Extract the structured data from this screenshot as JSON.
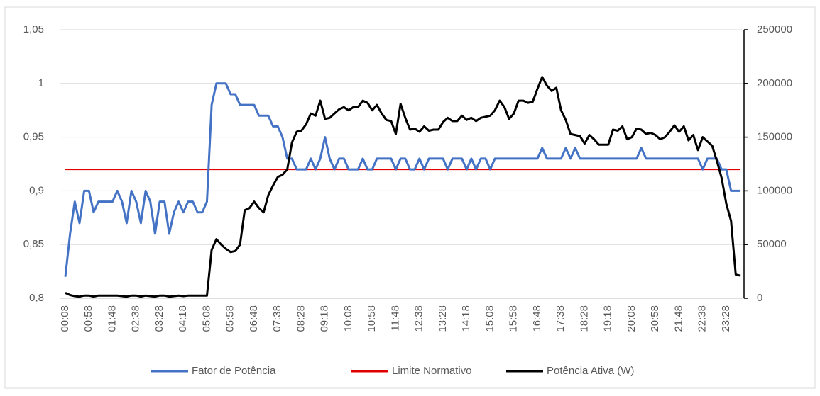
{
  "chart_data": {
    "type": "line",
    "categories": [
      "00:08",
      null,
      null,
      null,
      null,
      "00:58",
      null,
      null,
      null,
      null,
      "01:48",
      null,
      null,
      null,
      null,
      "02:38",
      null,
      null,
      null,
      null,
      "03:28",
      null,
      null,
      null,
      null,
      "04:18",
      null,
      null,
      null,
      null,
      "05:08",
      null,
      null,
      null,
      null,
      "05:58",
      null,
      null,
      null,
      null,
      "06:48",
      null,
      null,
      null,
      null,
      "07:38",
      null,
      null,
      null,
      null,
      "08:28",
      null,
      null,
      null,
      null,
      "09:18",
      null,
      null,
      null,
      null,
      "10:08",
      null,
      null,
      null,
      null,
      "10:58",
      null,
      null,
      null,
      null,
      "11:48",
      null,
      null,
      null,
      null,
      "12:38",
      null,
      null,
      null,
      null,
      "13:28",
      null,
      null,
      null,
      null,
      "14:18",
      null,
      null,
      null,
      null,
      "15:08",
      null,
      null,
      null,
      null,
      "15:58",
      null,
      null,
      null,
      null,
      "16:48",
      null,
      null,
      null,
      null,
      "17:38",
      null,
      null,
      null,
      null,
      "18:28",
      null,
      null,
      null,
      null,
      "19:18",
      null,
      null,
      null,
      null,
      "20:08",
      null,
      null,
      null,
      null,
      "20:58",
      null,
      null,
      null,
      null,
      "21:48",
      null,
      null,
      null,
      null,
      "22:38",
      null,
      null,
      null,
      null,
      "23:28",
      null,
      null,
      null
    ],
    "series": [
      {
        "name": "Fator de Potência",
        "color": "#4472c4",
        "values": [
          0.82,
          0.86,
          0.89,
          0.87,
          0.9,
          0.9,
          0.88,
          0.89,
          0.89,
          0.89,
          0.89,
          0.9,
          0.89,
          0.87,
          0.9,
          0.89,
          0.87,
          0.9,
          0.89,
          0.86,
          0.89,
          0.89,
          0.86,
          0.88,
          0.89,
          0.88,
          0.89,
          0.89,
          0.88,
          0.88,
          0.89,
          0.98,
          1.0,
          1.0,
          1.0,
          0.99,
          0.99,
          0.98,
          0.98,
          0.98,
          0.98,
          0.97,
          0.97,
          0.97,
          0.96,
          0.96,
          0.95,
          0.93,
          0.93,
          0.92,
          0.92,
          0.92,
          0.93,
          0.92,
          0.93,
          0.95,
          0.93,
          0.92,
          0.93,
          0.93,
          0.92,
          0.92,
          0.92,
          0.93,
          0.92,
          0.92,
          0.93,
          0.93,
          0.93,
          0.93,
          0.92,
          0.93,
          0.93,
          0.92,
          0.92,
          0.93,
          0.92,
          0.93,
          0.93,
          0.93,
          0.93,
          0.92,
          0.93,
          0.93,
          0.93,
          0.92,
          0.93,
          0.92,
          0.93,
          0.93,
          0.92,
          0.93,
          0.93,
          0.93,
          0.93,
          0.93,
          0.93,
          0.93,
          0.93,
          0.93,
          0.93,
          0.94,
          0.93,
          0.93,
          0.93,
          0.93,
          0.94,
          0.93,
          0.94,
          0.93,
          0.93,
          0.93,
          0.93,
          0.93,
          0.93,
          0.93,
          0.93,
          0.93,
          0.93,
          0.93,
          0.93,
          0.93,
          0.94,
          0.93,
          0.93,
          0.93,
          0.93,
          0.93,
          0.93,
          0.93,
          0.93,
          0.93,
          0.93,
          0.93,
          0.93,
          0.92,
          0.93,
          0.93,
          0.93,
          0.92,
          0.92,
          0.9,
          0.9,
          0.9
        ]
      },
      {
        "name": "Limite Normativo",
        "color": "#e00000",
        "values": [
          0.92,
          0.92,
          0.92,
          0.92,
          0.92,
          0.92,
          0.92,
          0.92,
          0.92,
          0.92,
          0.92,
          0.92,
          0.92,
          0.92,
          0.92,
          0.92,
          0.92,
          0.92,
          0.92,
          0.92,
          0.92,
          0.92,
          0.92,
          0.92,
          0.92,
          0.92,
          0.92,
          0.92,
          0.92,
          0.92,
          0.92,
          0.92,
          0.92,
          0.92,
          0.92,
          0.92,
          0.92,
          0.92,
          0.92,
          0.92,
          0.92,
          0.92,
          0.92,
          0.92,
          0.92,
          0.92,
          0.92,
          0.92,
          0.92,
          0.92,
          0.92,
          0.92,
          0.92,
          0.92,
          0.92,
          0.92,
          0.92,
          0.92,
          0.92,
          0.92,
          0.92,
          0.92,
          0.92,
          0.92,
          0.92,
          0.92,
          0.92,
          0.92,
          0.92,
          0.92,
          0.92,
          0.92,
          0.92,
          0.92,
          0.92,
          0.92,
          0.92,
          0.92,
          0.92,
          0.92,
          0.92,
          0.92,
          0.92,
          0.92,
          0.92,
          0.92,
          0.92,
          0.92,
          0.92,
          0.92,
          0.92,
          0.92,
          0.92,
          0.92,
          0.92,
          0.92,
          0.92,
          0.92,
          0.92,
          0.92,
          0.92,
          0.92,
          0.92,
          0.92,
          0.92,
          0.92,
          0.92,
          0.92,
          0.92,
          0.92,
          0.92,
          0.92,
          0.92,
          0.92,
          0.92,
          0.92,
          0.92,
          0.92,
          0.92,
          0.92,
          0.92,
          0.92,
          0.92,
          0.92,
          0.92,
          0.92,
          0.92,
          0.92,
          0.92,
          0.92,
          0.92,
          0.92,
          0.92,
          0.92,
          0.92,
          0.92,
          0.92,
          0.92,
          0.92,
          0.92,
          0.92,
          0.92,
          0.92,
          0.92
        ]
      },
      {
        "name": "Potência Ativa (W)",
        "color": "#000000",
        "axis": "y2",
        "values": [
          5000,
          3000,
          2000,
          1500,
          2500,
          2500,
          1500,
          2500,
          2500,
          2500,
          2500,
          2500,
          2000,
          1500,
          2500,
          2500,
          1500,
          2500,
          2000,
          1500,
          2500,
          2500,
          1500,
          2000,
          2500,
          2000,
          2500,
          2500,
          2500,
          2500,
          2500,
          45000,
          55000,
          50000,
          46000,
          43000,
          44000,
          50000,
          82000,
          84000,
          90000,
          84000,
          80000,
          96000,
          105000,
          113000,
          115000,
          120000,
          145000,
          155000,
          156000,
          162000,
          172000,
          170000,
          184000,
          167000,
          168000,
          172000,
          176000,
          178000,
          175000,
          178000,
          178000,
          184000,
          182000,
          175000,
          180000,
          172000,
          166000,
          165000,
          153000,
          181000,
          168000,
          157000,
          158000,
          155000,
          160000,
          156000,
          157000,
          157000,
          164000,
          168000,
          165000,
          165000,
          170000,
          166000,
          168000,
          165000,
          168000,
          169000,
          170000,
          175000,
          184000,
          178000,
          167000,
          172000,
          184000,
          184000,
          182000,
          183000,
          195000,
          206000,
          198000,
          193000,
          196000,
          175000,
          166000,
          153000,
          152000,
          151000,
          144000,
          152000,
          148000,
          143000,
          143000,
          143000,
          157000,
          156000,
          160000,
          148000,
          150000,
          158000,
          157000,
          153000,
          154000,
          152000,
          148000,
          150000,
          155000,
          161000,
          155000,
          160000,
          147000,
          152000,
          138000,
          150000,
          146000,
          142000,
          128000,
          112000,
          88000,
          72000,
          22000,
          21000
        ]
      }
    ],
    "ylim": [
      0.8,
      1.05
    ],
    "yticks": [
      {
        "value": 0.8,
        "label": "0,8"
      },
      {
        "value": 0.85,
        "label": "0,85"
      },
      {
        "value": 0.9,
        "label": "0,9"
      },
      {
        "value": 0.95,
        "label": "0,95"
      },
      1,
      {
        "value": 1.05,
        "label": "1,05"
      }
    ],
    "y2lim": [
      0,
      250000
    ],
    "y2ticks": [
      0,
      50000,
      100000,
      150000,
      200000,
      250000
    ],
    "grid": true,
    "legend": "bottom"
  }
}
